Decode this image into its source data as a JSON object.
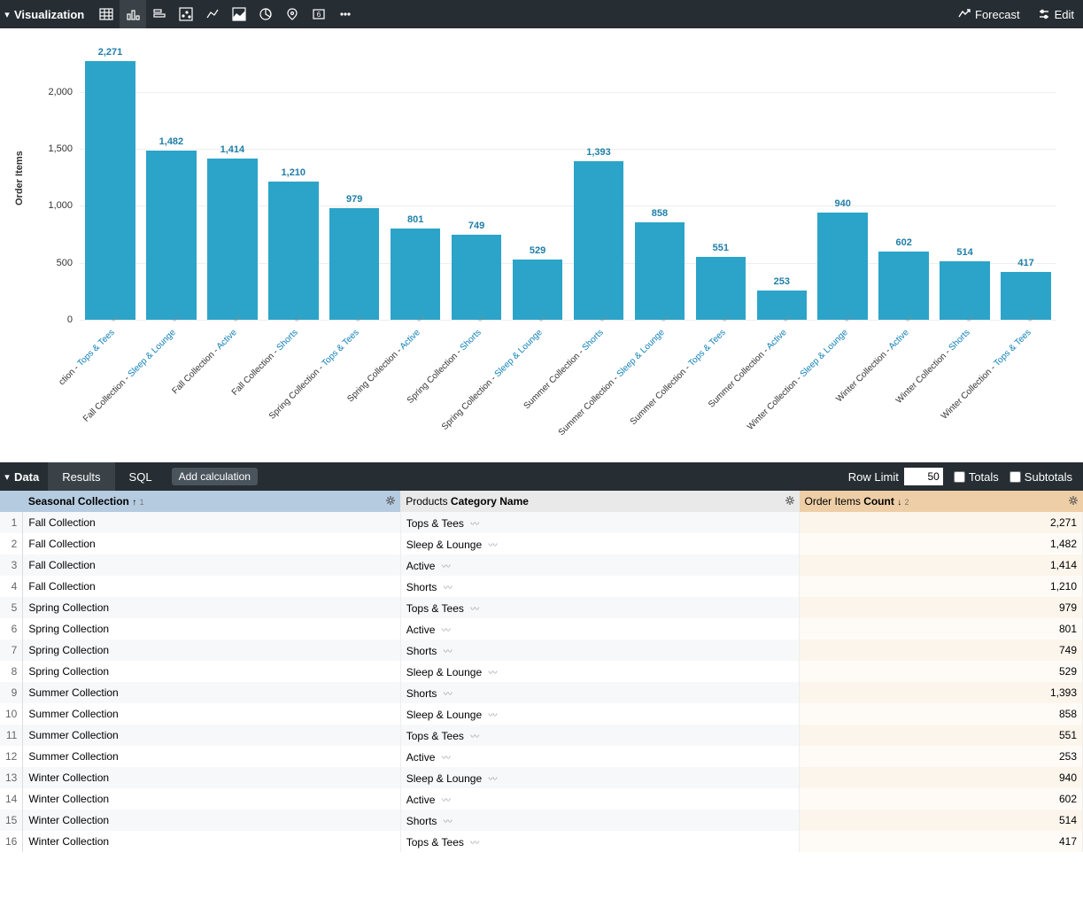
{
  "viz_header": {
    "title": "Visualization",
    "forecast": "Forecast",
    "edit": "Edit"
  },
  "chart": {
    "type": "bar",
    "y_axis_title": "Order Items",
    "y_ticks": [
      0,
      500,
      1000,
      1500,
      2000
    ],
    "y_max": 2400,
    "bar_color": "#2ca4c9",
    "label_color": "#1f7ea8",
    "grid_color": "#eeeeee",
    "bars": [
      {
        "collection_label": "ction - ",
        "category": "Tops & Tees",
        "value": 2271,
        "value_str": "2,271"
      },
      {
        "collection_label": "Fall Collection - ",
        "category": "Sleep & Lounge",
        "value": 1482,
        "value_str": "1,482"
      },
      {
        "collection_label": "Fall Collection - ",
        "category": "Active",
        "value": 1414,
        "value_str": "1,414"
      },
      {
        "collection_label": "Fall Collection - ",
        "category": "Shorts",
        "value": 1210,
        "value_str": "1,210"
      },
      {
        "collection_label": "Spring Collection - ",
        "category": "Tops & Tees",
        "value": 979,
        "value_str": "979"
      },
      {
        "collection_label": "Spring Collection - ",
        "category": "Active",
        "value": 801,
        "value_str": "801"
      },
      {
        "collection_label": "Spring Collection - ",
        "category": "Shorts",
        "value": 749,
        "value_str": "749"
      },
      {
        "collection_label": "Spring Collection - ",
        "category": "Sleep & Lounge",
        "value": 529,
        "value_str": "529"
      },
      {
        "collection_label": "Summer Collection - ",
        "category": "Shorts",
        "value": 1393,
        "value_str": "1,393"
      },
      {
        "collection_label": "Summer Collection - ",
        "category": "Sleep & Lounge",
        "value": 858,
        "value_str": "858"
      },
      {
        "collection_label": "Summer Collection - ",
        "category": "Tops & Tees",
        "value": 551,
        "value_str": "551"
      },
      {
        "collection_label": "Summer Collection - ",
        "category": "Active",
        "value": 253,
        "value_str": "253"
      },
      {
        "collection_label": "Winter Collection - ",
        "category": "Sleep & Lounge",
        "value": 940,
        "value_str": "940"
      },
      {
        "collection_label": "Winter Collection - ",
        "category": "Active",
        "value": 602,
        "value_str": "602"
      },
      {
        "collection_label": "Winter Collection - ",
        "category": "Shorts",
        "value": 514,
        "value_str": "514"
      },
      {
        "collection_label": "Winter Collection - ",
        "category": "Tops & Tees",
        "value": 417,
        "value_str": "417"
      }
    ]
  },
  "data_header": {
    "title": "Data",
    "tabs": {
      "results": "Results",
      "sql": "SQL"
    },
    "add_calc": "Add calculation",
    "row_limit_label": "Row Limit",
    "row_limit_value": "50",
    "totals_label": "Totals",
    "subtotals_label": "Subtotals"
  },
  "table": {
    "columns": {
      "seasonal": {
        "label": "Seasonal Collection",
        "sort_dir": "↑",
        "sort_num": "1"
      },
      "category": {
        "prefix": "Products ",
        "label": "Category Name"
      },
      "count": {
        "prefix": "Order Items ",
        "label": "Count",
        "sort_dir": "↓",
        "sort_num": "2"
      }
    },
    "rows": [
      {
        "n": "1",
        "collection": "Fall Collection",
        "category": "Tops & Tees",
        "count": "2,271"
      },
      {
        "n": "2",
        "collection": "Fall Collection",
        "category": "Sleep & Lounge",
        "count": "1,482"
      },
      {
        "n": "3",
        "collection": "Fall Collection",
        "category": "Active",
        "count": "1,414"
      },
      {
        "n": "4",
        "collection": "Fall Collection",
        "category": "Shorts",
        "count": "1,210"
      },
      {
        "n": "5",
        "collection": "Spring Collection",
        "category": "Tops & Tees",
        "count": "979"
      },
      {
        "n": "6",
        "collection": "Spring Collection",
        "category": "Active",
        "count": "801"
      },
      {
        "n": "7",
        "collection": "Spring Collection",
        "category": "Shorts",
        "count": "749"
      },
      {
        "n": "8",
        "collection": "Spring Collection",
        "category": "Sleep & Lounge",
        "count": "529"
      },
      {
        "n": "9",
        "collection": "Summer Collection",
        "category": "Shorts",
        "count": "1,393"
      },
      {
        "n": "10",
        "collection": "Summer Collection",
        "category": "Sleep & Lounge",
        "count": "858"
      },
      {
        "n": "11",
        "collection": "Summer Collection",
        "category": "Tops & Tees",
        "count": "551"
      },
      {
        "n": "12",
        "collection": "Summer Collection",
        "category": "Active",
        "count": "253"
      },
      {
        "n": "13",
        "collection": "Winter Collection",
        "category": "Sleep & Lounge",
        "count": "940"
      },
      {
        "n": "14",
        "collection": "Winter Collection",
        "category": "Active",
        "count": "602"
      },
      {
        "n": "15",
        "collection": "Winter Collection",
        "category": "Shorts",
        "count": "514"
      },
      {
        "n": "16",
        "collection": "Winter Collection",
        "category": "Tops & Tees",
        "count": "417"
      }
    ]
  }
}
